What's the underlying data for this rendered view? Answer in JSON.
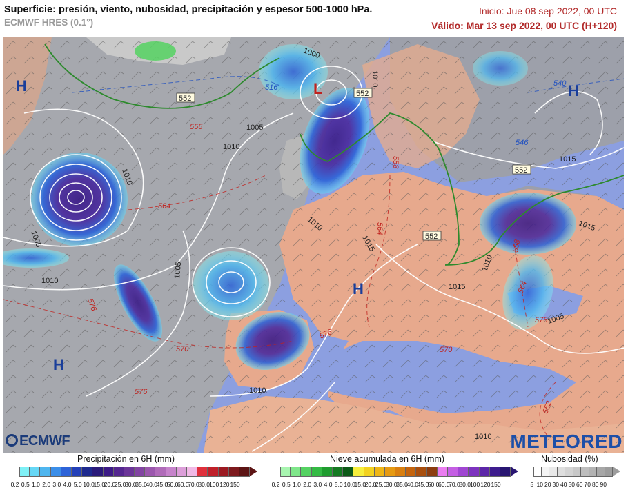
{
  "header": {
    "title": "Superficie: presión, viento, nubosidad, precipitación y espesor 500-1000 hPa.",
    "model": "ECMWF HRES (0.1°)",
    "init": "Inicio: Jue 08 sep 2022, 00 UTC",
    "valid": "Válido: Mar 13 sep 2022, 00 UTC (H+120)"
  },
  "map": {
    "pressure_centers": [
      {
        "label": "H",
        "kind": "high"
      },
      {
        "label": "H",
        "kind": "high"
      },
      {
        "label": "H",
        "kind": "high"
      },
      {
        "label": "H",
        "kind": "high"
      },
      {
        "label": "L",
        "kind": "low"
      }
    ],
    "isobar_labels": [
      "1000",
      "1005",
      "1010",
      "1005",
      "1010",
      "1005",
      "1010",
      "1010",
      "1010",
      "1015",
      "1015",
      "1015",
      "1010",
      "1005",
      "1010",
      "1015",
      "1010"
    ],
    "thickness_labels_red": [
      "556",
      "564",
      "576",
      "570",
      "576",
      "564",
      "558",
      "558",
      "564",
      "576",
      "576",
      "570",
      "552"
    ],
    "thickness_labels_blue": [
      "516",
      "540",
      "546"
    ],
    "thickness_labels_boxed": [
      "552",
      "552",
      "552",
      "552"
    ]
  },
  "logos": {
    "left": "ECMWF",
    "right": "METEORED"
  },
  "legends": {
    "precip": {
      "title": "Precipitación en 6H (mm)",
      "ticks": [
        "0,2",
        "0,5",
        "1,0",
        "2,0",
        "3,0",
        "4,0",
        "5,0",
        "10,0",
        "15,0",
        "20,0",
        "25,0",
        "30,0",
        "35,0",
        "40,0",
        "45,0",
        "50,0",
        "60,0",
        "70,0",
        "80,0",
        "100",
        "120",
        "150"
      ],
      "colors": [
        "#7ff0f6",
        "#66d7f5",
        "#4fb6ef",
        "#3b8ee8",
        "#2d63d8",
        "#2340b8",
        "#1e2a8e",
        "#2a1a7a",
        "#3c1a86",
        "#54268f",
        "#6b3598",
        "#8244a2",
        "#9b57ad",
        "#b06bb9",
        "#c683cb",
        "#dc9ed9",
        "#f1b9e6",
        "#e0303c",
        "#c0202a",
        "#9c1a22",
        "#7d1a1e",
        "#5c1414"
      ]
    },
    "snow": {
      "title": "Nieve acumulada en 6H (mm)",
      "ticks": [
        "0,2",
        "0,5",
        "1,0",
        "2,0",
        "3,0",
        "4,0",
        "5,0",
        "10,0",
        "15,0",
        "20,0",
        "25,0",
        "30,0",
        "35,0",
        "40,0",
        "45,0",
        "50,0",
        "60,0",
        "70,0",
        "80,0",
        "100",
        "120",
        "150"
      ],
      "colors": [
        "#a8f5b0",
        "#7fe68a",
        "#55d262",
        "#34ba44",
        "#1f9c2f",
        "#157a22",
        "#0d5a18",
        "#f7ef3c",
        "#f3d21f",
        "#efb615",
        "#e69a12",
        "#d97f10",
        "#c4640e",
        "#a84f0f",
        "#8c3d10",
        "#ea7cf0",
        "#c45ee3",
        "#a046d2",
        "#7d33bf",
        "#5c26a8",
        "#3e1c8e",
        "#281571"
      ]
    },
    "cloud": {
      "title": "Nubosidad (%)",
      "ticks": [
        "5",
        "10",
        "20",
        "30",
        "40",
        "50",
        "60",
        "70",
        "80",
        "90"
      ],
      "colors": [
        "#ffffff",
        "#f4f4f4",
        "#e9e9e9",
        "#dedede",
        "#d3d3d3",
        "#c8c8c8",
        "#bdbdbd",
        "#b2b2b2",
        "#a7a7a7",
        "#9c9c9c"
      ]
    }
  }
}
